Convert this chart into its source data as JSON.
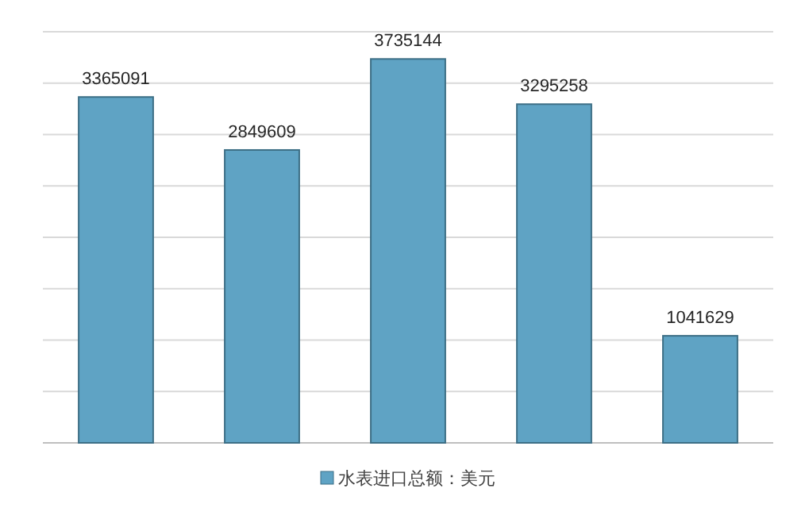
{
  "chart_data": {
    "type": "bar",
    "categories": [
      null,
      null,
      null,
      null,
      null
    ],
    "series": [
      {
        "name": "水表进口总额：美元",
        "color": "#5fa3c4",
        "values": [
          3365091,
          2849609,
          3735144,
          3295258,
          1041629
        ]
      }
    ],
    "ylim": [
      0,
      4000000
    ],
    "yticks": [
      {
        "value": 0,
        "label": null
      },
      {
        "value": 500000,
        "label": null
      },
      {
        "value": 1000000,
        "label": null
      },
      {
        "value": 1500000,
        "label": null
      },
      {
        "value": 2000000,
        "label": null
      },
      {
        "value": 2500000,
        "label": null
      },
      {
        "value": 3000000,
        "label": null
      },
      {
        "value": 3500000,
        "label": null
      },
      {
        "value": 4000000,
        "label": null
      }
    ],
    "grid": "y",
    "legend": "bottom",
    "data_labels": true
  }
}
